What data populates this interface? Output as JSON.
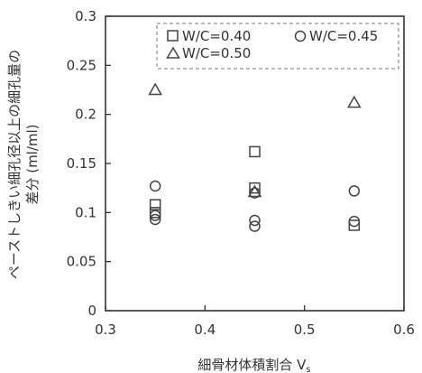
{
  "chart_data": {
    "type": "scatter",
    "xlabel": "細骨材体積割合 V",
    "xlabel_subscript": "s",
    "ylabel_line1": "ペーストしきい細孔径以上の細孔量の",
    "ylabel_line2": "差分 (ml/ml)",
    "xlim": [
      0.3,
      0.6
    ],
    "ylim": [
      0,
      0.3
    ],
    "x_ticks": [
      "0.3",
      "0.4",
      "0.5",
      "0.6"
    ],
    "y_ticks": [
      "0",
      "0.05",
      "0.1",
      "0.15",
      "0.2",
      "0.25",
      "0.3"
    ],
    "x_tick_values": [
      0.3,
      0.4,
      0.5,
      0.6
    ],
    "y_tick_values": [
      0,
      0.05,
      0.1,
      0.15,
      0.2,
      0.25,
      0.3
    ],
    "legend_position": "top",
    "grid": false,
    "series": [
      {
        "name": "W/C=0.40",
        "marker": "square",
        "points": [
          {
            "x": 0.35,
            "y": 0.108
          },
          {
            "x": 0.35,
            "y": 0.1
          },
          {
            "x": 0.45,
            "y": 0.162
          },
          {
            "x": 0.45,
            "y": 0.125
          },
          {
            "x": 0.55,
            "y": 0.087
          }
        ]
      },
      {
        "name": "W/C=0.45",
        "marker": "circle",
        "points": [
          {
            "x": 0.35,
            "y": 0.127
          },
          {
            "x": 0.35,
            "y": 0.097
          },
          {
            "x": 0.35,
            "y": 0.093
          },
          {
            "x": 0.45,
            "y": 0.12
          },
          {
            "x": 0.45,
            "y": 0.092
          },
          {
            "x": 0.45,
            "y": 0.086
          },
          {
            "x": 0.55,
            "y": 0.122
          },
          {
            "x": 0.55,
            "y": 0.091
          }
        ]
      },
      {
        "name": "W/C=0.50",
        "marker": "triangle",
        "points": [
          {
            "x": 0.35,
            "y": 0.225
          },
          {
            "x": 0.45,
            "y": 0.121
          },
          {
            "x": 0.55,
            "y": 0.212
          }
        ]
      }
    ]
  },
  "colors": {
    "axis": "#333333",
    "marker": "#444444",
    "legend_border": "#777777"
  }
}
